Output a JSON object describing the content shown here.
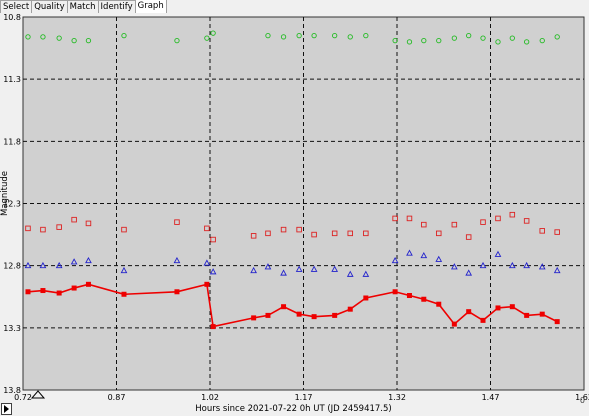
{
  "tabs": [
    {
      "label": "Select",
      "active": false
    },
    {
      "label": "Quality",
      "active": false
    },
    {
      "label": "Match",
      "active": false
    },
    {
      "label": "Identify",
      "active": false
    },
    {
      "label": "Graph",
      "active": true
    }
  ],
  "bottom_right_label": "0",
  "chart_data": {
    "type": "scatter",
    "xlabel": "Hours since 2021-07-22 0h UT (JD 2459417.5)",
    "ylabel": "Magnitude",
    "xlim": [
      0.72,
      1.62
    ],
    "ylim": [
      10.8,
      13.8
    ],
    "y_inverted": true,
    "x_ticks": [
      "0.72",
      "0.87",
      "1.02",
      "1.17",
      "1.32",
      "1.47",
      "1.62"
    ],
    "y_ticks": [
      "10.8",
      "11.3",
      "11.8",
      "12.3",
      "12.8",
      "13.3",
      "13.8"
    ],
    "grid": true,
    "colors": {
      "green": "#22bb22",
      "red_square": "#dd2222",
      "blue": "#2222cc",
      "red_line": "#ee0000",
      "background": "#d0d0d0"
    },
    "series": [
      {
        "marker": "circle",
        "color": "green",
        "x": [
          0.728,
          0.752,
          0.778,
          0.802,
          0.825,
          0.882,
          0.967,
          1.015,
          1.025,
          1.113,
          1.138,
          1.163,
          1.187,
          1.22,
          1.245,
          1.27,
          1.317,
          1.34,
          1.363,
          1.387,
          1.412,
          1.435,
          1.458,
          1.482,
          1.505,
          1.528,
          1.553,
          1.577
        ],
        "y": [
          10.96,
          10.96,
          10.97,
          10.99,
          10.99,
          10.95,
          10.99,
          10.97,
          10.93,
          10.95,
          10.96,
          10.95,
          10.95,
          10.95,
          10.96,
          10.95,
          10.99,
          11.0,
          10.99,
          10.99,
          10.97,
          10.95,
          10.97,
          11.0,
          10.97,
          11.0,
          10.99,
          10.96
        ]
      },
      {
        "marker": "square",
        "color": "red_square",
        "x": [
          0.728,
          0.752,
          0.778,
          0.802,
          0.825,
          0.882,
          0.967,
          1.015,
          1.025,
          1.09,
          1.113,
          1.138,
          1.163,
          1.187,
          1.22,
          1.245,
          1.27,
          1.317,
          1.34,
          1.363,
          1.387,
          1.412,
          1.435,
          1.458,
          1.482,
          1.505,
          1.528,
          1.553,
          1.577
        ],
        "y": [
          12.5,
          12.51,
          12.49,
          12.43,
          12.46,
          12.51,
          12.45,
          12.5,
          12.59,
          12.56,
          12.54,
          12.51,
          12.51,
          12.55,
          12.54,
          12.54,
          12.54,
          12.42,
          12.42,
          12.47,
          12.54,
          12.47,
          12.57,
          12.45,
          12.42,
          12.39,
          12.44,
          12.52,
          12.53
        ]
      },
      {
        "marker": "triangle",
        "color": "blue",
        "x": [
          0.728,
          0.752,
          0.778,
          0.802,
          0.825,
          0.882,
          0.967,
          1.015,
          1.025,
          1.09,
          1.113,
          1.138,
          1.163,
          1.187,
          1.22,
          1.245,
          1.27,
          1.317,
          1.34,
          1.363,
          1.387,
          1.412,
          1.435,
          1.458,
          1.482,
          1.505,
          1.528,
          1.553,
          1.577
        ],
        "y": [
          12.8,
          12.8,
          12.8,
          12.77,
          12.76,
          12.84,
          12.76,
          12.78,
          12.85,
          12.84,
          12.81,
          12.86,
          12.83,
          12.83,
          12.83,
          12.87,
          12.87,
          12.76,
          12.7,
          12.72,
          12.75,
          12.81,
          12.86,
          12.8,
          12.71,
          12.8,
          12.8,
          12.81,
          12.84
        ]
      },
      {
        "marker": "line",
        "color": "red_line",
        "x": [
          0.728,
          0.752,
          0.778,
          0.802,
          0.825,
          0.882,
          0.967,
          1.015,
          1.025,
          1.09,
          1.113,
          1.138,
          1.163,
          1.187,
          1.22,
          1.245,
          1.27,
          1.317,
          1.34,
          1.363,
          1.387,
          1.412,
          1.435,
          1.458,
          1.482,
          1.505,
          1.528,
          1.553,
          1.577
        ],
        "y": [
          13.01,
          13.0,
          13.02,
          12.98,
          12.95,
          13.03,
          13.01,
          12.95,
          13.29,
          13.22,
          13.2,
          13.13,
          13.19,
          13.21,
          13.2,
          13.15,
          13.06,
          13.01,
          13.04,
          13.07,
          13.11,
          13.27,
          13.17,
          13.24,
          13.14,
          13.13,
          13.2,
          13.19,
          13.25
        ]
      }
    ]
  }
}
